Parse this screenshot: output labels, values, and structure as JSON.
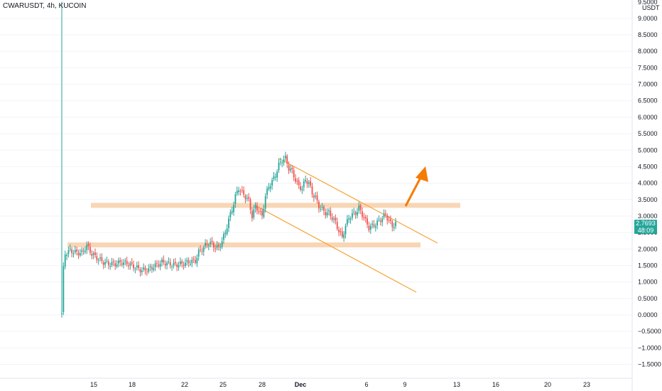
{
  "header": {
    "title": "CWARUSDT, 4h, KUCOIN"
  },
  "price_axis": {
    "currency": "USDT",
    "top_label": "9.5000",
    "ticks": [
      "9.0000",
      "8.5000",
      "8.0000",
      "7.5000",
      "7.0000",
      "6.5000",
      "6.0000",
      "5.5000",
      "5.0000",
      "4.5000",
      "4.0000",
      "3.5000",
      "3.0000",
      "2.5000",
      "2.0000",
      "1.5000",
      "1.0000",
      "0.5000",
      "0.0000",
      "−0.5000",
      "−1.0000",
      "−1.5000"
    ]
  },
  "time_axis": {
    "ticks": [
      "15",
      "18",
      "22",
      "25",
      "28",
      "Dec",
      "6",
      "9",
      "13",
      "16",
      "20",
      "23"
    ]
  },
  "last_price": {
    "price": "2.7693",
    "countdown": "48:09"
  },
  "colors": {
    "up": "#26a69a",
    "down": "#ef5350",
    "zone": "#f5c89c",
    "channel": "#f7a233",
    "arrow": "#f57c00",
    "grid": "#f0f3fa"
  },
  "chart_data": {
    "type": "candlestick",
    "symbol": "CWARUSDT",
    "timeframe": "4h",
    "exchange": "KUCOIN",
    "ylim": [
      -1.7,
      9.6
    ],
    "y_ticks": [
      -1.5,
      -1.0,
      -0.5,
      0,
      0.5,
      1.0,
      1.5,
      2.0,
      2.5,
      3.0,
      3.5,
      4.0,
      4.5,
      5.0,
      5.5,
      6.0,
      6.5,
      7.0,
      7.5,
      8.0,
      8.5,
      9.0
    ],
    "x_ticks": [
      "15",
      "18",
      "22",
      "25",
      "28",
      "Dec",
      "6",
      "9",
      "13",
      "16",
      "20",
      "23"
    ],
    "close_path": [
      [
        0,
        0.05
      ],
      [
        1,
        1.4
      ],
      [
        2,
        1.85
      ],
      [
        3,
        1.9
      ],
      [
        5,
        1.95
      ],
      [
        8,
        1.9
      ],
      [
        12,
        1.88
      ],
      [
        15,
        2.1
      ],
      [
        18,
        1.85
      ],
      [
        22,
        1.7
      ],
      [
        25,
        1.6
      ],
      [
        28,
        1.55
      ],
      [
        32,
        1.55
      ],
      [
        36,
        1.6
      ],
      [
        40,
        1.55
      ],
      [
        44,
        1.45
      ],
      [
        48,
        1.35
      ],
      [
        52,
        1.38
      ],
      [
        56,
        1.5
      ],
      [
        60,
        1.6
      ],
      [
        64,
        1.55
      ],
      [
        68,
        1.52
      ],
      [
        72,
        1.55
      ],
      [
        76,
        1.6
      ],
      [
        80,
        1.65
      ],
      [
        82,
        1.9
      ],
      [
        84,
        2.0
      ],
      [
        86,
        2.1
      ],
      [
        88,
        2.2
      ],
      [
        90,
        2.15
      ],
      [
        92,
        2.05
      ],
      [
        94,
        2.05
      ],
      [
        96,
        2.25
      ],
      [
        98,
        2.5
      ],
      [
        100,
        2.9
      ],
      [
        102,
        3.2
      ],
      [
        104,
        3.6
      ],
      [
        106,
        3.85
      ],
      [
        108,
        3.7
      ],
      [
        110,
        3.6
      ],
      [
        112,
        3.45
      ],
      [
        114,
        3.0
      ],
      [
        116,
        3.3
      ],
      [
        118,
        3.15
      ],
      [
        120,
        3.0
      ],
      [
        122,
        3.6
      ],
      [
        124,
        3.9
      ],
      [
        126,
        4.05
      ],
      [
        128,
        4.25
      ],
      [
        130,
        4.55
      ],
      [
        132,
        4.7
      ],
      [
        134,
        4.75
      ],
      [
        136,
        4.45
      ],
      [
        138,
        4.35
      ],
      [
        140,
        4.1
      ],
      [
        142,
        3.9
      ],
      [
        144,
        3.85
      ],
      [
        146,
        4.1
      ],
      [
        148,
        4.0
      ],
      [
        150,
        3.7
      ],
      [
        152,
        3.55
      ],
      [
        154,
        3.3
      ],
      [
        156,
        3.2
      ],
      [
        158,
        3.1
      ],
      [
        160,
        3.1
      ],
      [
        162,
        2.95
      ],
      [
        164,
        2.8
      ],
      [
        166,
        2.55
      ],
      [
        168,
        2.35
      ],
      [
        170,
        2.7
      ],
      [
        172,
        2.95
      ],
      [
        174,
        3.05
      ],
      [
        176,
        3.1
      ],
      [
        178,
        3.25
      ],
      [
        180,
        3.05
      ],
      [
        182,
        2.85
      ],
      [
        184,
        2.65
      ],
      [
        186,
        2.7
      ],
      [
        188,
        2.75
      ],
      [
        190,
        2.85
      ],
      [
        192,
        2.95
      ],
      [
        194,
        3.05
      ],
      [
        196,
        2.85
      ],
      [
        198,
        2.7
      ],
      [
        200,
        2.77
      ]
    ],
    "support_zones": [
      {
        "from_x": 14,
        "to_x": 226,
        "low": 2.05,
        "high": 2.2
      },
      {
        "from_x": 14,
        "to_x": 250,
        "low": 3.25,
        "high": 3.4
      }
    ],
    "channel_lines": [
      {
        "from": [
          134,
          4.75
        ],
        "to": [
          236,
          2.15
        ]
      },
      {
        "from": [
          118,
          3.3
        ],
        "to": [
          230,
          0.7
        ]
      }
    ],
    "projection_arrow": {
      "from": [
        199,
        3.3
      ],
      "to": [
        215,
        4.5
      ]
    }
  }
}
